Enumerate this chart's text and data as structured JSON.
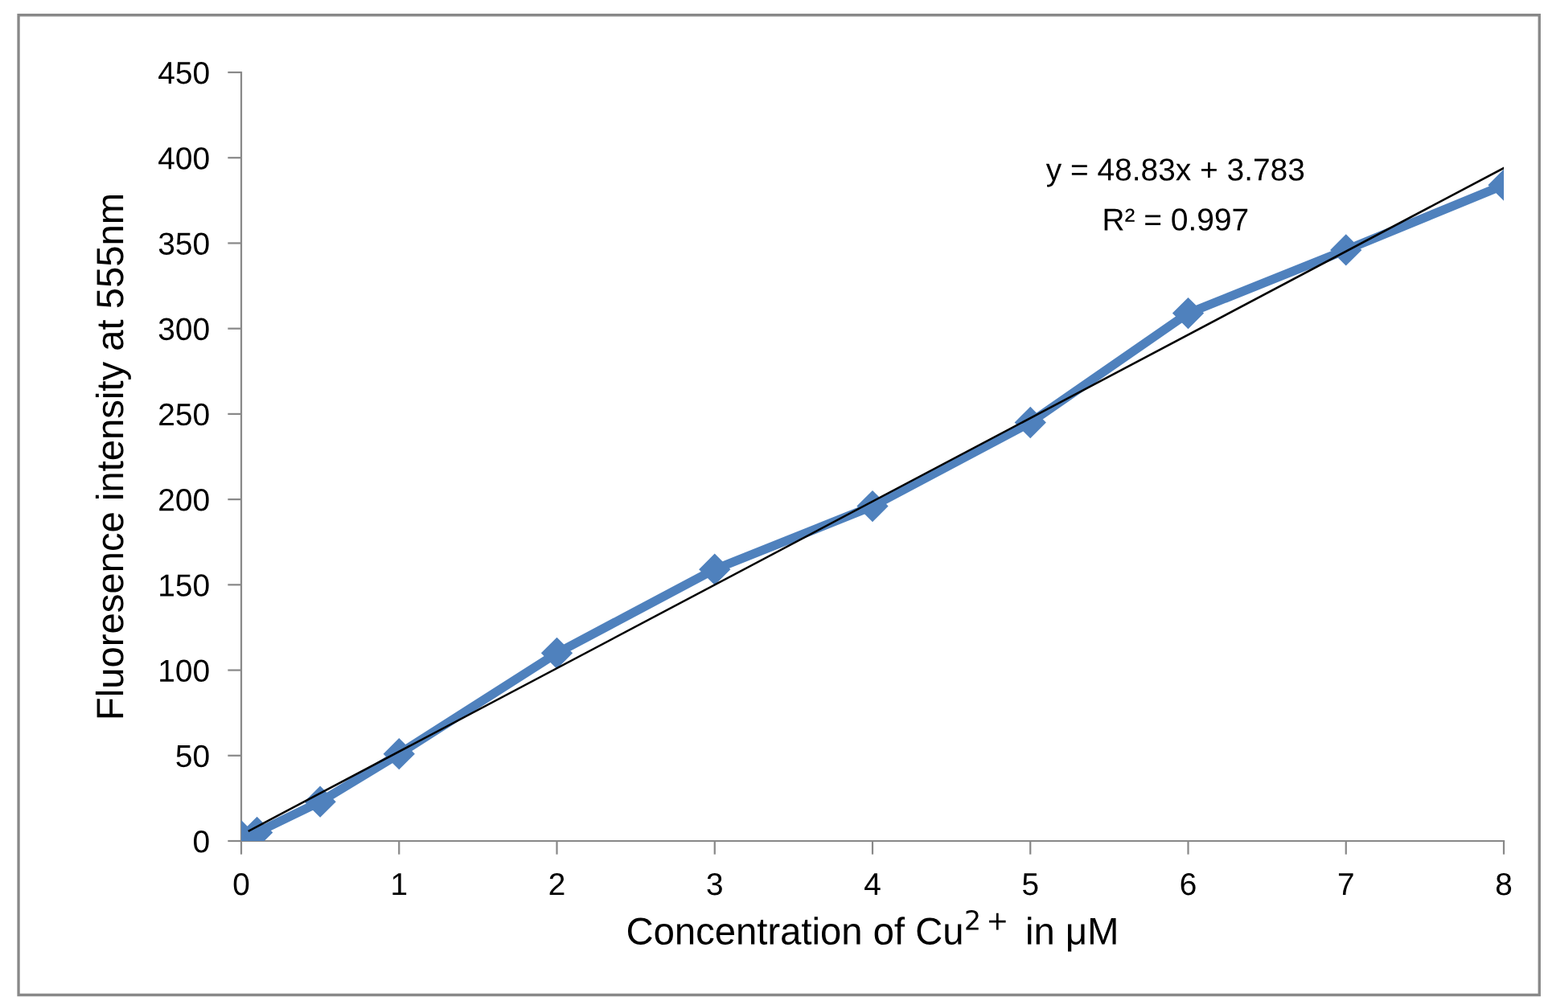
{
  "chart_data": {
    "type": "line",
    "xlabel": "Concentration of Cu$^{2+}$ in μM",
    "ylabel": "Fluoresence intensity at 555nm",
    "x": [
      0,
      0.1,
      0.5,
      1,
      2,
      3,
      4,
      5,
      6,
      7,
      8
    ],
    "series": [
      {
        "color": "#4f81bd",
        "marker": "diamond",
        "values": [
          3,
          5,
          23,
          51,
          110,
          159,
          196,
          245,
          309,
          346,
          384
        ]
      },
      {
        "color": "#000000",
        "marker": "none",
        "x": [
          0.05,
          8
        ],
        "values": [
          6,
          394
        ]
      }
    ],
    "xlim": [
      0,
      8
    ],
    "xticks": [
      0,
      1,
      2,
      3,
      4,
      5,
      6,
      7,
      8
    ],
    "ylim": [
      0,
      450
    ],
    "yticks": [
      0,
      50,
      100,
      150,
      200,
      250,
      300,
      350,
      400,
      450
    ],
    "grid": false,
    "legend": false,
    "annotations": [
      "y = 48.83x + 3.783",
      "R² = 0.997"
    ]
  }
}
